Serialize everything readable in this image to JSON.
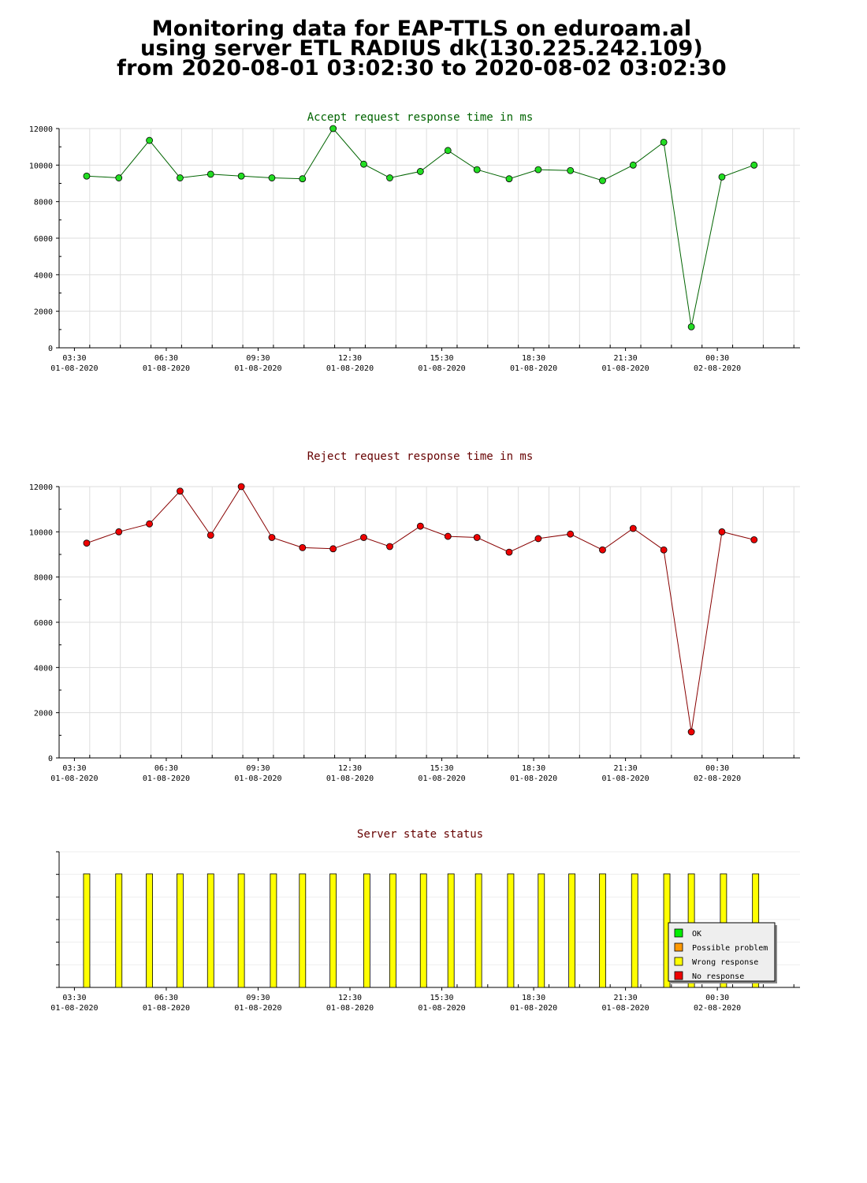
{
  "page": {
    "title_lines": [
      "Monitoring data for EAP-TTLS on eduroam.al",
      "using server ETL RADIUS dk(130.225.242.109)",
      "from 2020-08-01 03:02:30 to 2020-08-02 03:02:30"
    ]
  },
  "chart_data": [
    {
      "type": "line",
      "title": "Accept request response time in ms",
      "title_color": "#006400",
      "line_color": "#006400",
      "marker_color": "#22dd22",
      "ylim": [
        0,
        12000
      ],
      "yticks": [
        0,
        2000,
        4000,
        6000,
        8000,
        10000,
        12000
      ],
      "xlim": [
        3.0,
        27.2
      ],
      "x_tick_labels": [
        {
          "x": 3.5,
          "time": "03:30",
          "date": "01-08-2020"
        },
        {
          "x": 6.5,
          "time": "06:30",
          "date": "01-08-2020"
        },
        {
          "x": 9.5,
          "time": "09:30",
          "date": "01-08-2020"
        },
        {
          "x": 12.5,
          "time": "12:30",
          "date": "01-08-2020"
        },
        {
          "x": 15.5,
          "time": "15:30",
          "date": "01-08-2020"
        },
        {
          "x": 18.5,
          "time": "18:30",
          "date": "01-08-2020"
        },
        {
          "x": 21.5,
          "time": "21:30",
          "date": "01-08-2020"
        },
        {
          "x": 24.5,
          "time": "00:30",
          "date": "02-08-2020"
        }
      ],
      "grid": true,
      "x": [
        3.9,
        4.95,
        5.95,
        6.95,
        7.95,
        8.95,
        9.95,
        10.95,
        11.95,
        12.95,
        13.8,
        14.8,
        15.7,
        16.65,
        17.7,
        18.65,
        19.7,
        20.75,
        21.75,
        22.75,
        23.65,
        24.65,
        25.7
      ],
      "values": [
        9400,
        9300,
        11350,
        9300,
        9500,
        9400,
        9300,
        9250,
        12000,
        10050,
        9300,
        9650,
        10800,
        9750,
        9250,
        9750,
        9700,
        9150,
        10000,
        11250,
        1150,
        9350,
        10000
      ]
    },
    {
      "type": "line",
      "title": "Reject request response time in ms",
      "title_color": "#660000",
      "line_color": "#880000",
      "marker_color": "#ee0000",
      "ylim": [
        0,
        12000
      ],
      "yticks": [
        0,
        2000,
        4000,
        6000,
        8000,
        10000,
        12000
      ],
      "xlim": [
        3.0,
        27.2
      ],
      "x_tick_labels": [
        {
          "x": 3.5,
          "time": "03:30",
          "date": "01-08-2020"
        },
        {
          "x": 6.5,
          "time": "06:30",
          "date": "01-08-2020"
        },
        {
          "x": 9.5,
          "time": "09:30",
          "date": "01-08-2020"
        },
        {
          "x": 12.5,
          "time": "12:30",
          "date": "01-08-2020"
        },
        {
          "x": 15.5,
          "time": "15:30",
          "date": "01-08-2020"
        },
        {
          "x": 18.5,
          "time": "18:30",
          "date": "01-08-2020"
        },
        {
          "x": 21.5,
          "time": "21:30",
          "date": "01-08-2020"
        },
        {
          "x": 24.5,
          "time": "00:30",
          "date": "02-08-2020"
        }
      ],
      "grid": true,
      "x": [
        3.9,
        4.95,
        5.95,
        6.95,
        7.95,
        8.95,
        9.95,
        10.95,
        11.95,
        12.95,
        13.8,
        14.8,
        15.7,
        16.65,
        17.7,
        18.65,
        19.7,
        20.75,
        21.75,
        22.75,
        23.65,
        24.65,
        25.7
      ],
      "values": [
        9500,
        10000,
        10350,
        11800,
        9850,
        12000,
        9750,
        9300,
        9250,
        9750,
        9350,
        10250,
        9800,
        9750,
        9100,
        9700,
        9900,
        9200,
        10150,
        9200,
        1150,
        10000,
        9650
      ]
    },
    {
      "type": "bar",
      "title": "Server state status",
      "title_color": "#660000",
      "xlim": [
        3.0,
        27.2
      ],
      "x_tick_labels": [
        {
          "x": 3.5,
          "time": "03:30",
          "date": "01-08-2020"
        },
        {
          "x": 6.5,
          "time": "06:30",
          "date": "01-08-2020"
        },
        {
          "x": 9.5,
          "time": "09:30",
          "date": "01-08-2020"
        },
        {
          "x": 12.5,
          "time": "12:30",
          "date": "01-08-2020"
        },
        {
          "x": 15.5,
          "time": "15:30",
          "date": "01-08-2020"
        },
        {
          "x": 18.5,
          "time": "18:30",
          "date": "01-08-2020"
        },
        {
          "x": 21.5,
          "time": "21:30",
          "date": "01-08-2020"
        },
        {
          "x": 24.5,
          "time": "00:30",
          "date": "02-08-2020"
        }
      ],
      "grid": false,
      "legend_position": "bottom-right",
      "legend": [
        {
          "label": "OK",
          "color": "#00ee00"
        },
        {
          "label": "Possible problem",
          "color": "#ff9900"
        },
        {
          "label": "Wrong response",
          "color": "#ffff00"
        },
        {
          "label": "No response",
          "color": "#ee0000"
        }
      ],
      "bar_color": "#ffff00",
      "x": [
        3.9,
        4.95,
        5.95,
        6.95,
        7.95,
        8.95,
        10.0,
        10.95,
        11.95,
        13.05,
        13.9,
        14.9,
        15.8,
        16.7,
        17.75,
        18.75,
        19.75,
        20.75,
        21.8,
        22.85,
        23.65,
        24.7,
        25.75
      ],
      "values": [
        "Wrong response",
        "Wrong response",
        "Wrong response",
        "Wrong response",
        "Wrong response",
        "Wrong response",
        "Wrong response",
        "Wrong response",
        "Wrong response",
        "Wrong response",
        "Wrong response",
        "Wrong response",
        "Wrong response",
        "Wrong response",
        "Wrong response",
        "Wrong response",
        "Wrong response",
        "Wrong response",
        "Wrong response",
        "Wrong response",
        "Wrong response",
        "Wrong response",
        "Wrong response"
      ]
    }
  ]
}
